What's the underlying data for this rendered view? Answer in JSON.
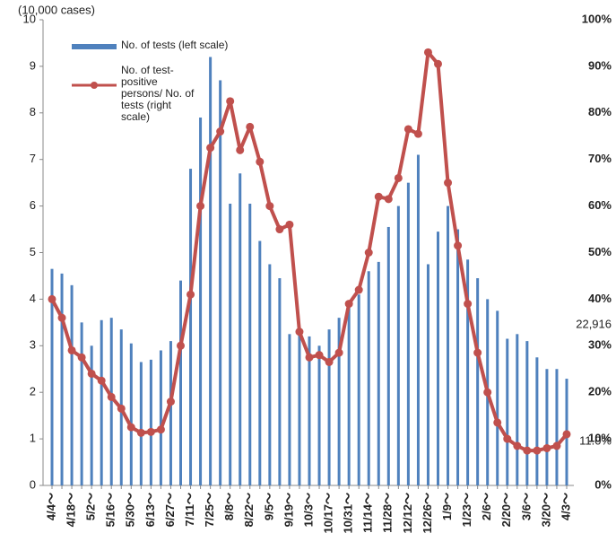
{
  "chart_data": {
    "type": "bar_line",
    "y_label": "(10,000 cases)",
    "categories": [
      "4/4～",
      null,
      "4/18～",
      null,
      "5/2～",
      null,
      "5/16～",
      null,
      "5/30～",
      null,
      "6/13～",
      null,
      "6/27～",
      null,
      "7/11～",
      null,
      "7/25～",
      null,
      "8/8～",
      null,
      "8/22～",
      null,
      "9/5～",
      null,
      "9/19～",
      null,
      "10/3～",
      null,
      "10/17～",
      null,
      "10/31～",
      null,
      "11/14～",
      null,
      "11/28～",
      null,
      "12/12～",
      null,
      "12/26～",
      null,
      "1/9～",
      null,
      "1/23～",
      null,
      "2/6～",
      null,
      "2/20～",
      null,
      "3/6～",
      null,
      "3/20～",
      null,
      "4/3～"
    ],
    "series": [
      {
        "name": "No. of tests (left scale)",
        "color": "#4f81bd",
        "type": "bar",
        "values": [
          4.65,
          4.55,
          4.3,
          3.5,
          3.0,
          3.55,
          3.6,
          3.35,
          3.05,
          2.65,
          2.7,
          2.9,
          3.1,
          4.4,
          6.8,
          7.9,
          9.2,
          8.7,
          6.05,
          6.7,
          6.05,
          5.25,
          4.75,
          4.45,
          3.25,
          3.3,
          3.2,
          3.0,
          3.35,
          3.6,
          3.85,
          4.1,
          4.6,
          4.8,
          5.55,
          6.0,
          6.5,
          7.1,
          4.75,
          5.45,
          6.0,
          5.5,
          4.85,
          4.45,
          4.0,
          3.75,
          3.15,
          3.25,
          3.1,
          2.75,
          2.5,
          2.5,
          2.2916
        ],
        "value_labels": [
          null,
          null,
          null,
          null,
          null,
          null,
          null,
          null,
          null,
          null,
          null,
          null,
          null,
          null,
          null,
          null,
          null,
          null,
          null,
          null,
          null,
          null,
          null,
          null,
          null,
          null,
          null,
          null,
          null,
          null,
          null,
          null,
          null,
          null,
          null,
          null,
          null,
          null,
          null,
          null,
          null,
          null,
          null,
          null,
          null,
          null,
          null,
          null,
          null,
          null,
          null,
          null,
          "22,916"
        ]
      },
      {
        "name": "No. of test-positive persons/ No. of tests (right scale)",
        "color": "#c0504d",
        "type": "line",
        "axis": "y2",
        "values": [
          40,
          36,
          29,
          27.5,
          24,
          22.5,
          19,
          16.5,
          12.5,
          11.3,
          11.5,
          12,
          18,
          30,
          41,
          60,
          72.5,
          76,
          82.5,
          72,
          77,
          69.5,
          60,
          55,
          56,
          33,
          27.5,
          28,
          26.5,
          28.5,
          39,
          42,
          50,
          62,
          61.5,
          66,
          76.5,
          75.5,
          93,
          90.5,
          65,
          51.5,
          39,
          28.5,
          20,
          13.5,
          10,
          8.5,
          7.5,
          7.5,
          8,
          8.5,
          11
        ],
        "value_labels": [
          null,
          null,
          null,
          null,
          null,
          null,
          null,
          null,
          null,
          null,
          null,
          null,
          null,
          null,
          null,
          null,
          null,
          null,
          null,
          null,
          null,
          null,
          null,
          null,
          null,
          null,
          null,
          null,
          null,
          null,
          null,
          null,
          null,
          null,
          null,
          null,
          null,
          null,
          null,
          null,
          null,
          null,
          null,
          null,
          null,
          null,
          null,
          null,
          null,
          null,
          null,
          null,
          "11.0%"
        ]
      }
    ],
    "ylim": [
      0,
      10
    ],
    "yticks": [
      0,
      1,
      2,
      3,
      4,
      5,
      6,
      7,
      8,
      9,
      10
    ],
    "y2lim": [
      0,
      100
    ],
    "y2ticks": [
      {
        "value": 0,
        "label": "0%"
      },
      {
        "value": 10,
        "label": "10%"
      },
      {
        "value": 20,
        "label": "20%"
      },
      {
        "value": 30,
        "label": "30%"
      },
      {
        "value": 40,
        "label": "40%"
      },
      {
        "value": 50,
        "label": "50%"
      },
      {
        "value": 60,
        "label": "60%"
      },
      {
        "value": 70,
        "label": "70%"
      },
      {
        "value": 80,
        "label": "80%"
      },
      {
        "value": 90,
        "label": "90%"
      },
      {
        "value": 100,
        "label": "100%"
      }
    ],
    "grid": false
  }
}
